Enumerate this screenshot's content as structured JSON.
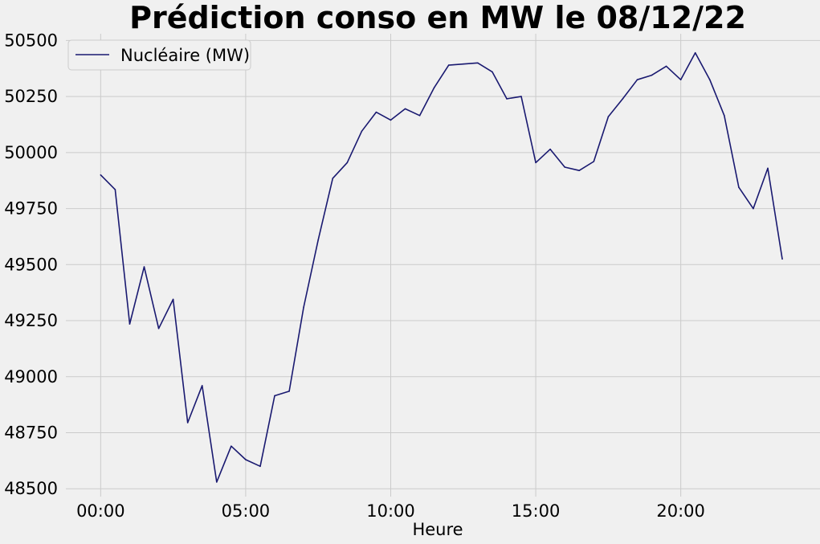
{
  "chart_data": {
    "type": "line",
    "title": "Prédiction conso en MW le 08/12/22",
    "xlabel": "Heure",
    "ylabel": "",
    "grid": true,
    "legend_position": "upper-left",
    "x_tick_labels": [
      "00:00",
      "05:00",
      "10:00",
      "15:00",
      "20:00"
    ],
    "x_tick_hours": [
      0,
      5,
      10,
      15,
      20
    ],
    "xlim_hours": [
      -1.2,
      24.8
    ],
    "y_ticks": [
      48500,
      48750,
      49000,
      49250,
      49500,
      49750,
      50000,
      50250,
      50500
    ],
    "ylim": [
      48465,
      50530
    ],
    "series": [
      {
        "name": "Nucléaire (MW)",
        "color": "#191970",
        "x": [
          "00:00",
          "00:30",
          "01:00",
          "01:30",
          "02:00",
          "02:30",
          "03:00",
          "03:30",
          "04:00",
          "04:30",
          "05:00",
          "05:30",
          "06:00",
          "06:30",
          "07:00",
          "07:30",
          "08:00",
          "08:30",
          "09:00",
          "09:30",
          "10:00",
          "10:30",
          "11:00",
          "11:30",
          "12:00",
          "12:30",
          "13:00",
          "13:30",
          "14:00",
          "14:30",
          "15:00",
          "15:30",
          "16:00",
          "16:30",
          "17:00",
          "17:30",
          "18:00",
          "18:30",
          "19:00",
          "19:30",
          "20:00",
          "20:30",
          "21:00",
          "21:30",
          "22:00",
          "22:30",
          "23:00",
          "23:30"
        ],
        "values": [
          49900,
          49835,
          49235,
          49490,
          49215,
          49345,
          48795,
          48960,
          48530,
          48690,
          48630,
          48600,
          48915,
          48935,
          49310,
          49610,
          49885,
          49955,
          50095,
          50180,
          50145,
          50195,
          50165,
          50290,
          50390,
          50395,
          50400,
          50360,
          50240,
          50250,
          49955,
          50015,
          49935,
          49920,
          49960,
          50160,
          50240,
          50325,
          50345,
          50385,
          50325,
          50445,
          50325,
          50165,
          49845,
          49750,
          49930,
          49525
        ]
      }
    ]
  }
}
